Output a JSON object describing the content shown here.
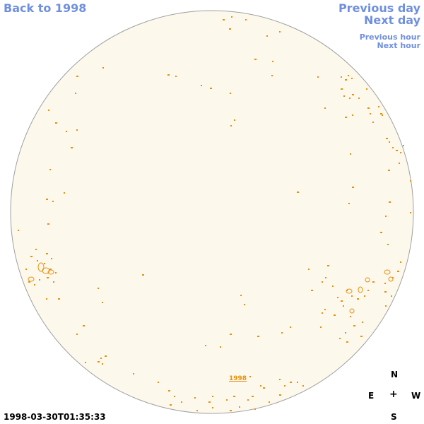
{
  "nav": {
    "back_label": "Back to 1998",
    "prev_day_label": "Previous day",
    "next_day_label": "Next day",
    "prev_hour_label": "Previous hour",
    "next_hour_label": "Next hour"
  },
  "compass": {
    "north": "N",
    "east": "E",
    "center": "+",
    "west": "W",
    "south": "S"
  },
  "timestamp": "1998-03-30T01:35:33",
  "year_label": "1998",
  "colors": {
    "link": "#6f8fdf",
    "disk_fill": "#fdf8ec",
    "disk_edge": "#a0a0a0",
    "contour": "#e8900e"
  }
}
